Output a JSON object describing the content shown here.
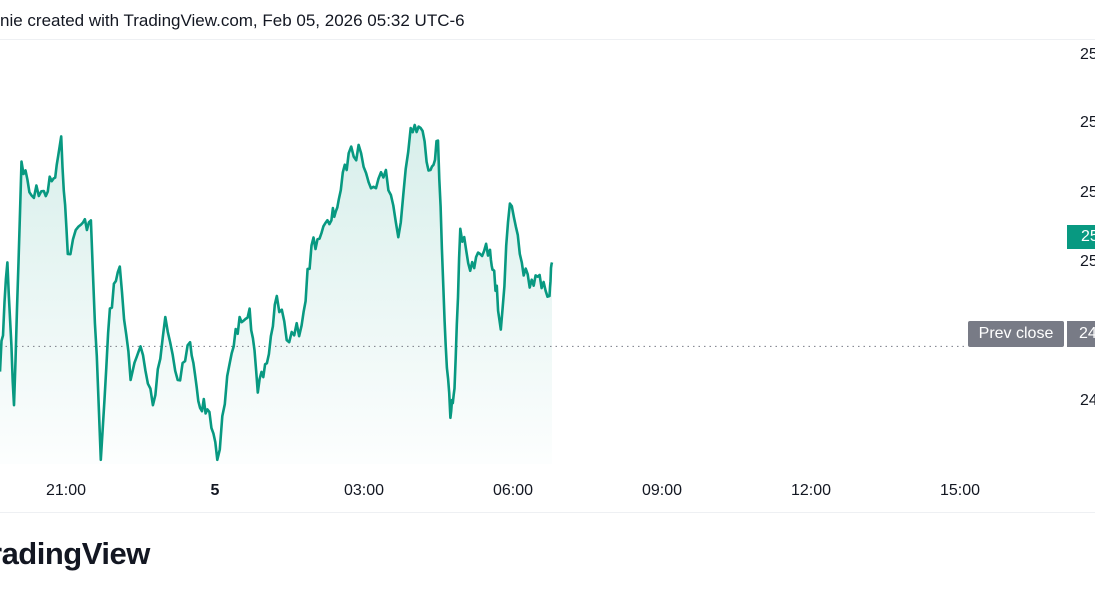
{
  "header": {
    "text": "nie created with TradingView.com, Feb 05, 2026 05:32 UTC-6"
  },
  "price_axis": {
    "labels": [
      "25",
      "25",
      "25",
      "25",
      "24"
    ],
    "current_value": "25",
    "prev_close_label": "Prev close",
    "prev_close_value": "24"
  },
  "time_axis": {
    "labels": [
      "21:00",
      "5",
      "03:00",
      "06:00",
      "09:00",
      "12:00",
      "15:00"
    ]
  },
  "footer": {
    "logo_text": "radingView"
  },
  "colors": {
    "line": "#089981",
    "area_top": "#089981",
    "prev_close": "#787b86",
    "text": "#131722"
  },
  "chart_data": {
    "type": "area",
    "title": "",
    "xlabel": "",
    "ylabel": "",
    "x": [
      "19:00",
      "19:09",
      "19:17",
      "19:26",
      "19:38",
      "19:53",
      "20:05",
      "20:14",
      "20:22",
      "20:38",
      "20:50",
      "21:02",
      "21:13",
      "21:25",
      "21:38",
      "21:50",
      "22:05",
      "22:20",
      "22:35",
      "22:50",
      "23:00",
      "23:11",
      "23:23",
      "23:38",
      "23:50",
      "00:02",
      "00:12",
      "00:23",
      "00:35",
      "00:50",
      "01:05",
      "01:17",
      "01:29",
      "01:41",
      "01:50",
      "02:02",
      "02:17",
      "02:32",
      "02:47",
      "03:02",
      "03:17",
      "03:29",
      "03:41",
      "03:50",
      "03:58",
      "04:05",
      "04:10",
      "04:17",
      "04:29",
      "04:41",
      "04:53",
      "04:58",
      "05:06",
      "05:17",
      "05:29",
      "05:41",
      "05:53",
      "06:05",
      "06:08"
    ],
    "series": [
      {
        "values": [
          22,
          48,
          14,
          72,
          64,
          65,
          68,
          78,
          50,
          57,
          58,
          1,
          37,
          47,
          20,
          28,
          14,
          35,
          20,
          29,
          15,
          13,
          1,
          24,
          35,
          37,
          17,
          24,
          40,
          29,
          33,
          52,
          55,
          58,
          63,
          74,
          74,
          66,
          70,
          54,
          80,
          80,
          70,
          77,
          34,
          11,
          18,
          56,
          46,
          50,
          51,
          46,
          32,
          62,
          50,
          42,
          45,
          40,
          48
        ]
      }
    ],
    "prev_close_position": 28,
    "ylim": [
      0,
      100
    ],
    "xlim_hours": [
      -5,
      16.5
    ],
    "grid": false,
    "legend": "none"
  }
}
